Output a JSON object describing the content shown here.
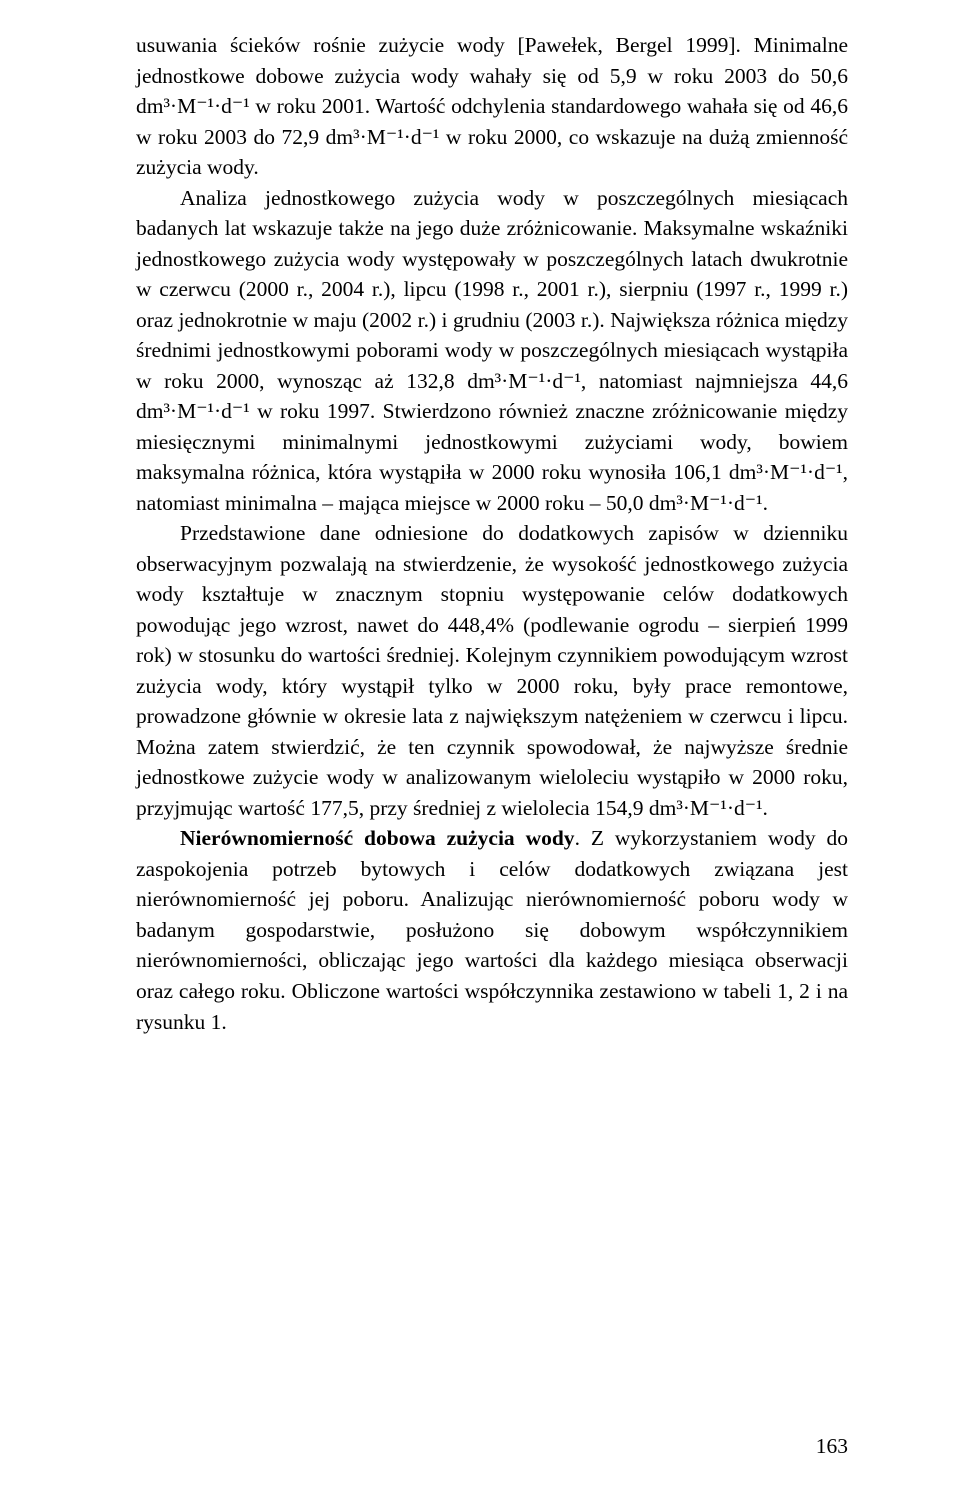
{
  "page": {
    "number": "163",
    "p1": "usuwania ścieków rośnie zużycie wody [Pawełek, Bergel 1999]. Minimalne jednostkowe dobowe zużycia wody wahały się od 5,9 w roku 2003 do 50,6 dm³·M⁻¹·d⁻¹ w roku 2001. Wartość odchylenia standardowego wahała się od 46,6 w roku 2003 do 72,9 dm³·M⁻¹·d⁻¹ w roku 2000, co wskazuje na dużą zmienność zużycia wody.",
    "p2": "Analiza jednostkowego zużycia wody w poszczególnych miesiącach badanych lat wskazuje także na jego duże zróżnicowanie. Maksymalne wskaźniki jednostkowego zużycia wody występowały w poszczególnych latach dwukrotnie w czerwcu (2000 r., 2004 r.), lipcu (1998 r., 2001 r.), sierpniu (1997 r., 1999 r.) oraz jednokrotnie w maju (2002 r.) i grudniu (2003 r.). Największa różnica między średnimi jednostkowymi poborami wody w poszczególnych miesiącach wystąpiła w roku 2000, wynosząc aż 132,8 dm³·M⁻¹·d⁻¹, natomiast najmniejsza 44,6 dm³·M⁻¹·d⁻¹ w roku 1997. Stwierdzono również znaczne zróżnicowanie między miesięcznymi minimalnymi jednostkowymi zużyciami wody, bowiem maksymalna różnica, która wystąpiła w 2000 roku wynosiła 106,1 dm³·M⁻¹·d⁻¹, natomiast minimalna – mająca miejsce w 2000 roku – 50,0 dm³·M⁻¹·d⁻¹.",
    "p3": "Przedstawione dane odniesione do dodatkowych zapisów w dzienniku obserwacyjnym pozwalają na stwierdzenie, że wysokość jednostkowego zużycia wody kształtuje w znacznym stopniu występowanie celów dodatkowych powodując jego wzrost, nawet do 448,4% (podlewanie ogrodu – sierpień 1999 rok) w stosunku do wartości średniej. Kolejnym czynnikiem powodującym wzrost zużycia wody, który wystąpił tylko w 2000 roku, były prace remontowe, prowadzone głównie w okresie lata z największym natężeniem w czerwcu i lipcu. Można zatem stwierdzić, że ten czynnik spowodował, że najwyższe średnie jednostkowe zużycie wody w analizowanym wieloleciu wystąpiło w 2000 roku, przyjmując wartość 177,5, przy średniej z wielolecia 154,9 dm³·M⁻¹·d⁻¹.",
    "p4_bold": "Nierównomierność dobowa zużycia wody",
    "p4_rest": ". Z wykorzystaniem wody do zaspokojenia potrzeb bytowych i celów dodatkowych związana jest nierównomierność jej poboru. Analizując nierównomierność poboru wody w badanym gospodarstwie, posłużono się dobowym współczynnikiem nierównomierności, obliczając jego wartości dla każdego miesiąca obserwacji oraz całego roku. Obliczone wartości współczynnika zestawiono w tabeli 1, 2 i na rysunku 1."
  }
}
